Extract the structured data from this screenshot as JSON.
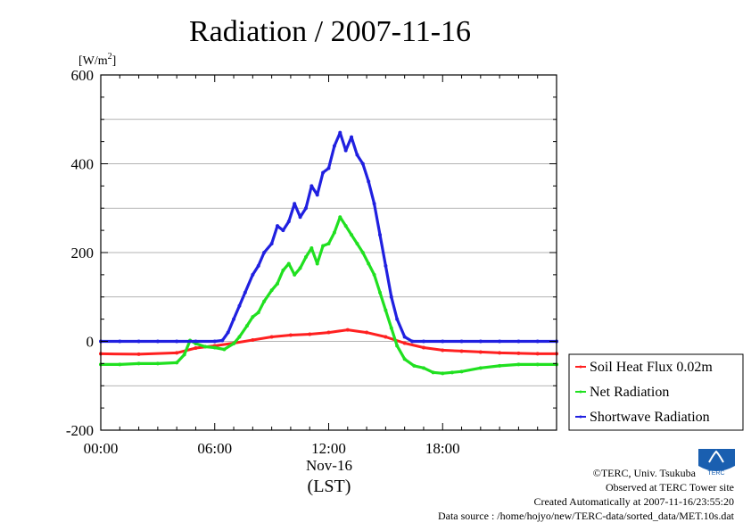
{
  "chart_data": {
    "type": "line",
    "title": "Radiation / 2007-11-16",
    "ylabel": "[W/m²]",
    "ylabel_base": "[W/m",
    "ylabel_sup": "2",
    "ylabel_close": "]",
    "xlabel_date": "Nov-16",
    "xlabel_tz": "(LST)",
    "ylim": [
      -200,
      600
    ],
    "xlim": [
      0,
      24
    ],
    "y_ticks": [
      -200,
      0,
      200,
      400,
      600
    ],
    "x_ticks": [
      0,
      6,
      12,
      18
    ],
    "x_tick_labels": [
      "00:00",
      "06:00",
      "12:00",
      "18:00"
    ],
    "grid": true,
    "legend_position": "bottom-right, outside plot",
    "series": [
      {
        "name": "Soil Heat Flux 0.02m",
        "color": "#ff2020",
        "x": [
          0,
          2,
          4,
          5,
          6,
          7,
          8,
          9,
          10,
          11,
          12,
          13,
          14,
          15,
          16,
          17,
          18,
          19,
          20,
          21,
          22,
          23,
          24
        ],
        "y": [
          -28,
          -29,
          -26,
          -15,
          -10,
          -4,
          3,
          10,
          14,
          16,
          20,
          26,
          20,
          10,
          -4,
          -14,
          -20,
          -22,
          -24,
          -26,
          -27,
          -28,
          -28
        ]
      },
      {
        "name": "Net Radiation",
        "color": "#20e020",
        "x": [
          0,
          1,
          2,
          3,
          4,
          4.4,
          4.7,
          5.0,
          5.5,
          6.0,
          6.5,
          7.0,
          7.3,
          7.7,
          8.0,
          8.3,
          8.6,
          9.0,
          9.3,
          9.6,
          9.9,
          10.2,
          10.5,
          10.8,
          11.1,
          11.4,
          11.7,
          12.0,
          12.3,
          12.6,
          12.9,
          13.2,
          13.5,
          13.8,
          14.1,
          14.4,
          14.7,
          15.0,
          15.3,
          15.6,
          16.0,
          16.5,
          17.0,
          17.5,
          18.0,
          18.5,
          19.0,
          20.0,
          21.0,
          22.0,
          23.0,
          24.0
        ],
        "y": [
          -52,
          -52,
          -50,
          -50,
          -48,
          -30,
          2,
          -5,
          -12,
          -14,
          -18,
          -5,
          10,
          35,
          55,
          65,
          90,
          115,
          130,
          160,
          175,
          150,
          165,
          190,
          210,
          175,
          215,
          220,
          245,
          280,
          260,
          240,
          220,
          200,
          175,
          150,
          110,
          70,
          30,
          -10,
          -40,
          -55,
          -60,
          -70,
          -72,
          -70,
          -68,
          -60,
          -55,
          -52,
          -52,
          -52
        ]
      },
      {
        "name": "Shortwave Radiation",
        "color": "#2020e0",
        "x": [
          0,
          1,
          2,
          3,
          4,
          5,
          6,
          6.4,
          6.7,
          7.0,
          7.3,
          7.6,
          8.0,
          8.3,
          8.6,
          9.0,
          9.3,
          9.6,
          9.9,
          10.2,
          10.5,
          10.8,
          11.1,
          11.4,
          11.7,
          12.0,
          12.3,
          12.6,
          12.9,
          13.2,
          13.5,
          13.8,
          14.1,
          14.4,
          14.7,
          15.0,
          15.3,
          15.6,
          16.0,
          16.4,
          17.0,
          18.0,
          19.0,
          20.0,
          21.0,
          22.0,
          23.0,
          24.0
        ],
        "y": [
          0,
          0,
          0,
          0,
          0,
          0,
          0,
          2,
          20,
          50,
          80,
          110,
          150,
          170,
          200,
          220,
          260,
          250,
          270,
          310,
          280,
          300,
          350,
          330,
          380,
          390,
          440,
          470,
          430,
          460,
          420,
          400,
          360,
          310,
          240,
          170,
          100,
          50,
          10,
          0,
          0,
          0,
          0,
          0,
          0,
          0,
          0,
          0
        ]
      }
    ]
  },
  "credits": {
    "copyright": "©TERC, Univ. Tsukuba",
    "observed": "Observed at TERC Tower site",
    "created": "Created Automatically at 2007-11-16/23:55:20",
    "source": "Data source : /home/hojyo/new/TERC-data/sorted_data/MET.10s.dat"
  },
  "logo": {
    "text": "TERC",
    "color": "#1a5fb0",
    "icon": "terc-logo"
  }
}
